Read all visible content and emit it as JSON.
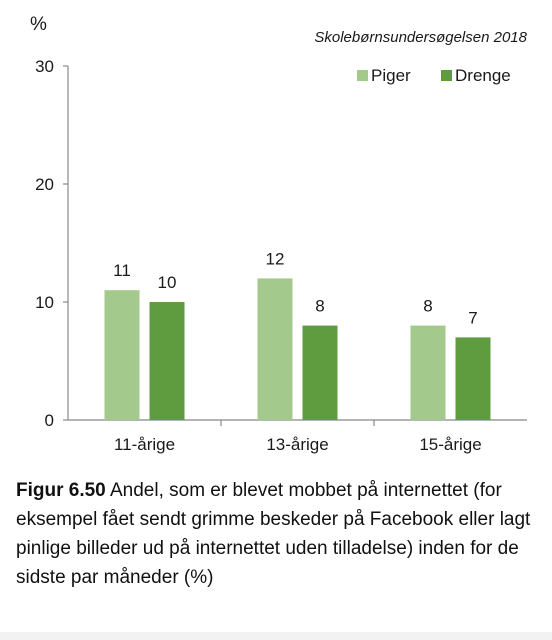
{
  "chart_data": {
    "type": "bar",
    "unit_label": "%",
    "source": "Skolebørnsundersøgelsen 2018",
    "categories": [
      "11-årige",
      "13-årige",
      "15-årige"
    ],
    "series": [
      {
        "name": "Piger",
        "values": [
          11,
          12,
          8
        ],
        "data_labels": [
          "11",
          "12",
          "8"
        ],
        "color": "#a3c98c"
      },
      {
        "name": "Drenge",
        "values": [
          10,
          8,
          7
        ],
        "data_labels": [
          "10",
          "8",
          "7"
        ],
        "color": "#5e9c3f"
      }
    ],
    "ylim": [
      0,
      30
    ],
    "yticks": [
      0,
      10,
      20,
      30
    ],
    "ytick_labels": [
      "0",
      "10",
      "20",
      "30"
    ],
    "legend_position": "top-right",
    "grid": false
  },
  "caption": {
    "figure_number": "Figur 6.50",
    "text": " Andel, som er blevet mobbet på inter­nettet (for eksempel fået sendt grimme beskeder på Facebook eller lagt pinlige billeder ud på inter­nettet uden tilladelse) inden for de sidste par må­neder (%)"
  }
}
